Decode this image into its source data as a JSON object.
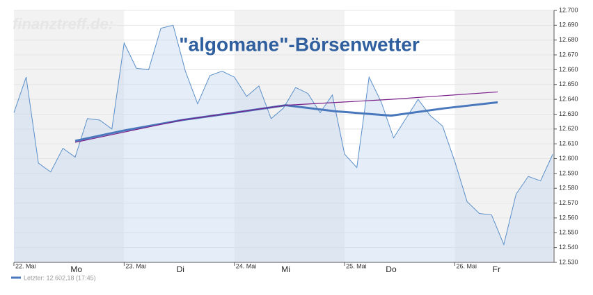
{
  "chart_data": {
    "type": "line",
    "title": "\"algomane\"-Börsenwetter",
    "watermark": "finanztreff.de:",
    "legend_text": "Letzter: 12.602,18 (17:45)",
    "x": [
      0,
      1,
      2,
      3,
      4,
      5,
      6,
      7,
      8,
      9,
      10,
      11,
      12,
      13,
      14,
      15,
      16,
      17,
      18,
      19,
      20,
      21,
      22,
      23,
      24,
      25,
      26,
      27,
      28,
      29,
      30,
      31,
      32,
      33,
      34,
      35,
      36,
      37,
      38,
      39,
      40,
      41,
      42,
      43,
      44
    ],
    "xlim": [
      0,
      44.1
    ],
    "xticks": [
      {
        "value": 0,
        "label": "22. Mai"
      },
      {
        "value": 9,
        "label": "23. Mai"
      },
      {
        "value": 18,
        "label": "24. Mai"
      },
      {
        "value": 27,
        "label": "25. Mai"
      },
      {
        "value": 36,
        "label": "26. Mai"
      }
    ],
    "weekday_ticks": [
      {
        "value": 5.1,
        "label": "Mo"
      },
      {
        "value": 13.6,
        "label": "Di"
      },
      {
        "value": 22.2,
        "label": "Mi"
      },
      {
        "value": 30.8,
        "label": "Do"
      },
      {
        "value": 39.4,
        "label": "Fr"
      }
    ],
    "ylim": [
      12.53,
      12.7
    ],
    "yticks": [
      {
        "value": 12.53,
        "label": "12.530"
      },
      {
        "value": 12.54,
        "label": "12.540"
      },
      {
        "value": 12.55,
        "label": "12.550"
      },
      {
        "value": 12.56,
        "label": "12.560"
      },
      {
        "value": 12.57,
        "label": "12.570"
      },
      {
        "value": 12.58,
        "label": "12.580"
      },
      {
        "value": 12.59,
        "label": "12.590"
      },
      {
        "value": 12.6,
        "label": "12.600"
      },
      {
        "value": 12.61,
        "label": "12.610"
      },
      {
        "value": 12.62,
        "label": "12.620"
      },
      {
        "value": 12.63,
        "label": "12.630"
      },
      {
        "value": 12.64,
        "label": "12.640"
      },
      {
        "value": 12.65,
        "label": "12.650"
      },
      {
        "value": 12.66,
        "label": "12.660"
      },
      {
        "value": 12.67,
        "label": "12.670"
      },
      {
        "value": 12.68,
        "label": "12.680"
      },
      {
        "value": 12.69,
        "label": "12.690"
      },
      {
        "value": 12.7,
        "label": "12.700"
      }
    ],
    "values": [
      12.631,
      12.655,
      12.597,
      12.591,
      12.607,
      12.601,
      12.627,
      12.626,
      12.62,
      12.678,
      12.661,
      12.66,
      12.688,
      12.69,
      12.659,
      12.637,
      12.656,
      12.659,
      12.655,
      12.642,
      12.649,
      12.627,
      12.634,
      12.648,
      12.644,
      12.631,
      12.643,
      12.603,
      12.594,
      12.655,
      12.638,
      12.614,
      12.627,
      12.64,
      12.629,
      12.622,
      12.598,
      12.571,
      12.563,
      12.562,
      12.542,
      12.576,
      12.588,
      12.585,
      12.603
    ],
    "color": "#5b8fc9",
    "trend_lines": [
      {
        "color": "#4a78bd",
        "x": [
          5,
          9,
          13.7,
          18,
          22.2,
          26.2,
          30.8,
          35.2,
          39.5
        ],
        "values": [
          12.612,
          12.619,
          12.626,
          12.631,
          12.636,
          12.632,
          12.629,
          12.634,
          12.638
        ]
      },
      {
        "color": "#7a1f8a",
        "x": [
          5,
          13.7,
          22.2,
          30.8,
          39.5
        ],
        "values": [
          12.611,
          12.626,
          12.636,
          12.64,
          12.645
        ]
      }
    ]
  }
}
